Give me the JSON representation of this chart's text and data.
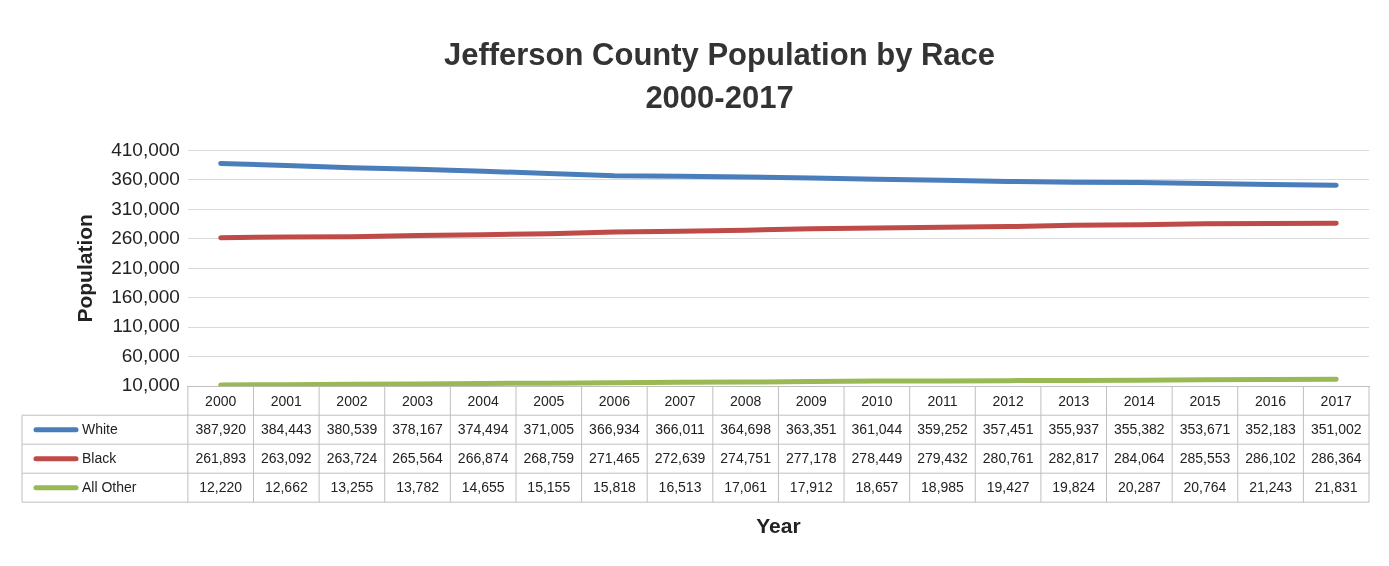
{
  "chart_data": {
    "type": "line",
    "title": "Jefferson County Population by Race",
    "subtitle": "2000-2017",
    "xlabel": "Year",
    "ylabel": "Population",
    "categories": [
      "2000",
      "2001",
      "2002",
      "2003",
      "2004",
      "2005",
      "2006",
      "2007",
      "2008",
      "2009",
      "2010",
      "2011",
      "2012",
      "2013",
      "2014",
      "2015",
      "2016",
      "2017"
    ],
    "series": [
      {
        "name": "White",
        "color": "#4a7ebb",
        "values": [
          387920,
          384443,
          380539,
          378167,
          374494,
          371005,
          366934,
          366011,
          364698,
          363351,
          361044,
          359252,
          357451,
          355937,
          355382,
          353671,
          352183,
          351002
        ],
        "value_labels": [
          "387,920",
          "384,443",
          "380,539",
          "378,167",
          "374,494",
          "371,005",
          "366,934",
          "366,011",
          "364,698",
          "363,351",
          "361,044",
          "359,252",
          "357,451",
          "355,937",
          "355,382",
          "353,671",
          "352,183",
          "351,002"
        ]
      },
      {
        "name": "Black",
        "color": "#be4b48",
        "values": [
          261893,
          263092,
          263724,
          265564,
          266874,
          268759,
          271465,
          272639,
          274751,
          277178,
          278449,
          279432,
          280761,
          282817,
          284064,
          285553,
          286102,
          286364
        ],
        "value_labels": [
          "261,893",
          "263,092",
          "263,724",
          "265,564",
          "266,874",
          "268,759",
          "271,465",
          "272,639",
          "274,751",
          "277,178",
          "278,449",
          "279,432",
          "280,761",
          "282,817",
          "284,064",
          "285,553",
          "286,102",
          "286,364"
        ]
      },
      {
        "name": "All Other",
        "color": "#98b954",
        "values": [
          12220,
          12662,
          13255,
          13782,
          14655,
          15155,
          15818,
          16513,
          17061,
          17912,
          18657,
          18985,
          19427,
          19824,
          20287,
          20764,
          21243,
          21831
        ],
        "value_labels": [
          "12,220",
          "12,662",
          "13,255",
          "13,782",
          "14,655",
          "15,155",
          "15,818",
          "16,513",
          "17,061",
          "17,912",
          "18,657",
          "18,985",
          "19,427",
          "19,824",
          "20,287",
          "20,764",
          "21,243",
          "21,831"
        ]
      }
    ],
    "ylim": [
      10000,
      410000
    ],
    "yticks": [
      {
        "value": 10000,
        "label": "10,000"
      },
      {
        "value": 60000,
        "label": "60,000"
      },
      {
        "value": 110000,
        "label": "110,000"
      },
      {
        "value": 160000,
        "label": "160,000"
      },
      {
        "value": 210000,
        "label": "210,000"
      },
      {
        "value": 260000,
        "label": "260,000"
      },
      {
        "value": 310000,
        "label": "310,000"
      },
      {
        "value": 360000,
        "label": "360,000"
      },
      {
        "value": 410000,
        "label": "410,000"
      }
    ],
    "grid": "y",
    "legend": "bottom",
    "marker": "none",
    "line_style": "solid"
  }
}
